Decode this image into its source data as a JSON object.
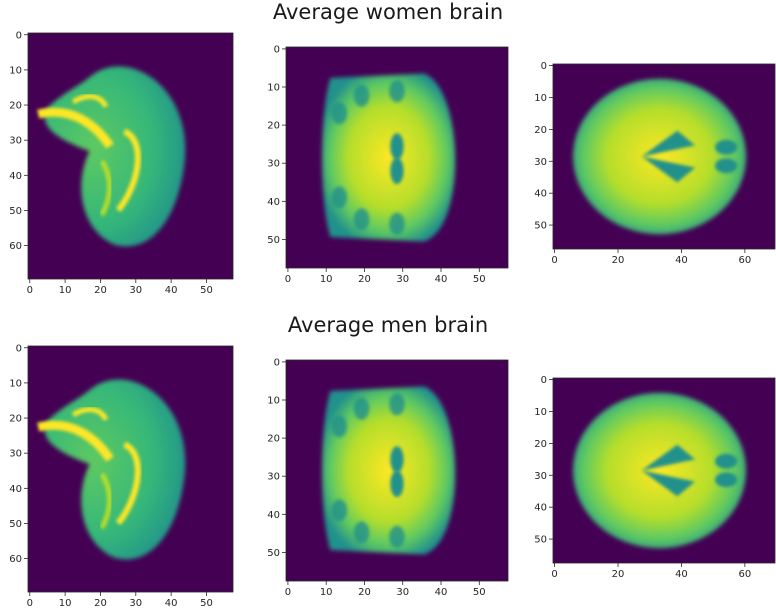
{
  "titles": {
    "women": "Average women brain",
    "men": "Average men brain"
  },
  "panels": [
    {
      "group": "women",
      "view": "sagittal",
      "xticks": [
        "0",
        "10",
        "20",
        "30",
        "40",
        "50"
      ],
      "yticks": [
        "0",
        "10",
        "20",
        "30",
        "40",
        "50",
        "60"
      ],
      "xrange": [
        0,
        58
      ],
      "yrange": [
        0,
        70
      ]
    },
    {
      "group": "women",
      "view": "coronal",
      "xticks": [
        "0",
        "10",
        "20",
        "30",
        "40",
        "50"
      ],
      "yticks": [
        "0",
        "10",
        "20",
        "30",
        "40",
        "50"
      ],
      "xrange": [
        0,
        58
      ],
      "yrange": [
        0,
        58
      ]
    },
    {
      "group": "women",
      "view": "axial",
      "xticks": [
        "0",
        "20",
        "40",
        "60"
      ],
      "yticks": [
        "0",
        "10",
        "20",
        "30",
        "40",
        "50"
      ],
      "xrange": [
        0,
        70
      ],
      "yrange": [
        0,
        58
      ]
    },
    {
      "group": "men",
      "view": "sagittal",
      "xticks": [
        "0",
        "10",
        "20",
        "30",
        "40",
        "50"
      ],
      "yticks": [
        "0",
        "10",
        "20",
        "30",
        "40",
        "50",
        "60"
      ],
      "xrange": [
        0,
        58
      ],
      "yrange": [
        0,
        70
      ]
    },
    {
      "group": "men",
      "view": "coronal",
      "xticks": [
        "0",
        "10",
        "20",
        "30",
        "40",
        "50"
      ],
      "yticks": [
        "0",
        "10",
        "20",
        "30",
        "40",
        "50"
      ],
      "xrange": [
        0,
        58
      ],
      "yrange": [
        0,
        58
      ]
    },
    {
      "group": "men",
      "view": "axial",
      "xticks": [
        "0",
        "20",
        "40",
        "60"
      ],
      "yticks": [
        "0",
        "10",
        "20",
        "30",
        "40",
        "50"
      ],
      "xrange": [
        0,
        70
      ],
      "yrange": [
        0,
        58
      ]
    }
  ],
  "colors": {
    "background": "#440154",
    "tissue_low": "#21918c",
    "tissue_mid": "#5ec962",
    "tissue_high": "#fde725",
    "frame": "#262626"
  }
}
